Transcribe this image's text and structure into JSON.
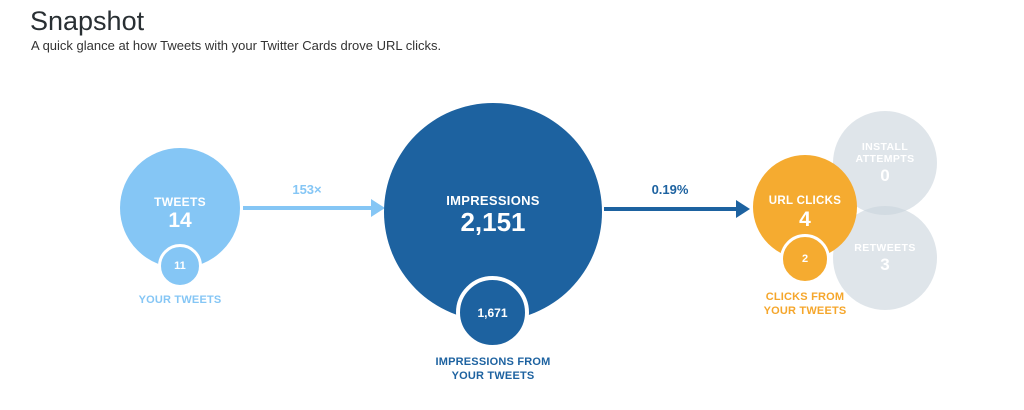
{
  "header": {
    "title": "Snapshot",
    "subtitle": "A quick glance at how Tweets with your Twitter Cards drove URL clicks."
  },
  "colors": {
    "light_blue": "#85c6f5",
    "dark_blue": "#1d62a0",
    "orange": "#f5ab30",
    "grey_bubble": "#e3e8ec",
    "title_text": "#292f33",
    "background": "#ffffff"
  },
  "chart_data": {
    "type": "bubble",
    "subtype": "funnel-flow-diagram",
    "title": "Snapshot",
    "subtitle": "A quick glance at how Tweets with your Twitter Cards drove URL clicks.",
    "flow": "left-to-right",
    "nodes": [
      {
        "id": "tweets",
        "label": "TWEETS",
        "value": 14,
        "value_display": "14",
        "sub_value": 11,
        "sub_value_display": "11",
        "sub_label": "YOUR TWEETS",
        "color": "#85c6f5"
      },
      {
        "id": "impressions",
        "label": "IMPRESSIONS",
        "value": 2151,
        "value_display": "2,151",
        "sub_value": 1671,
        "sub_value_display": "1,671",
        "sub_label": "IMPRESSIONS FROM YOUR TWEETS",
        "color": "#1d62a0"
      },
      {
        "id": "url_clicks",
        "label": "URL CLICKS",
        "value": 4,
        "value_display": "4",
        "sub_value": 2,
        "sub_value_display": "2",
        "sub_label": "CLICKS FROM YOUR TWEETS",
        "color": "#f5ab30"
      },
      {
        "id": "install_attempts",
        "label": "INSTALL ATTEMPTS",
        "value": 0,
        "value_display": "0",
        "color": "#e3e8ec"
      },
      {
        "id": "retweets",
        "label": "RETWEETS",
        "value": 3,
        "value_display": "3",
        "color": "#e3e8ec"
      }
    ],
    "edges": [
      {
        "from": "tweets",
        "to": "impressions",
        "label": "153×",
        "meaning": "impressions per tweet multiplier"
      },
      {
        "from": "impressions",
        "to": "url_clicks",
        "label": "0.19%",
        "meaning": "click-through rate"
      }
    ]
  }
}
